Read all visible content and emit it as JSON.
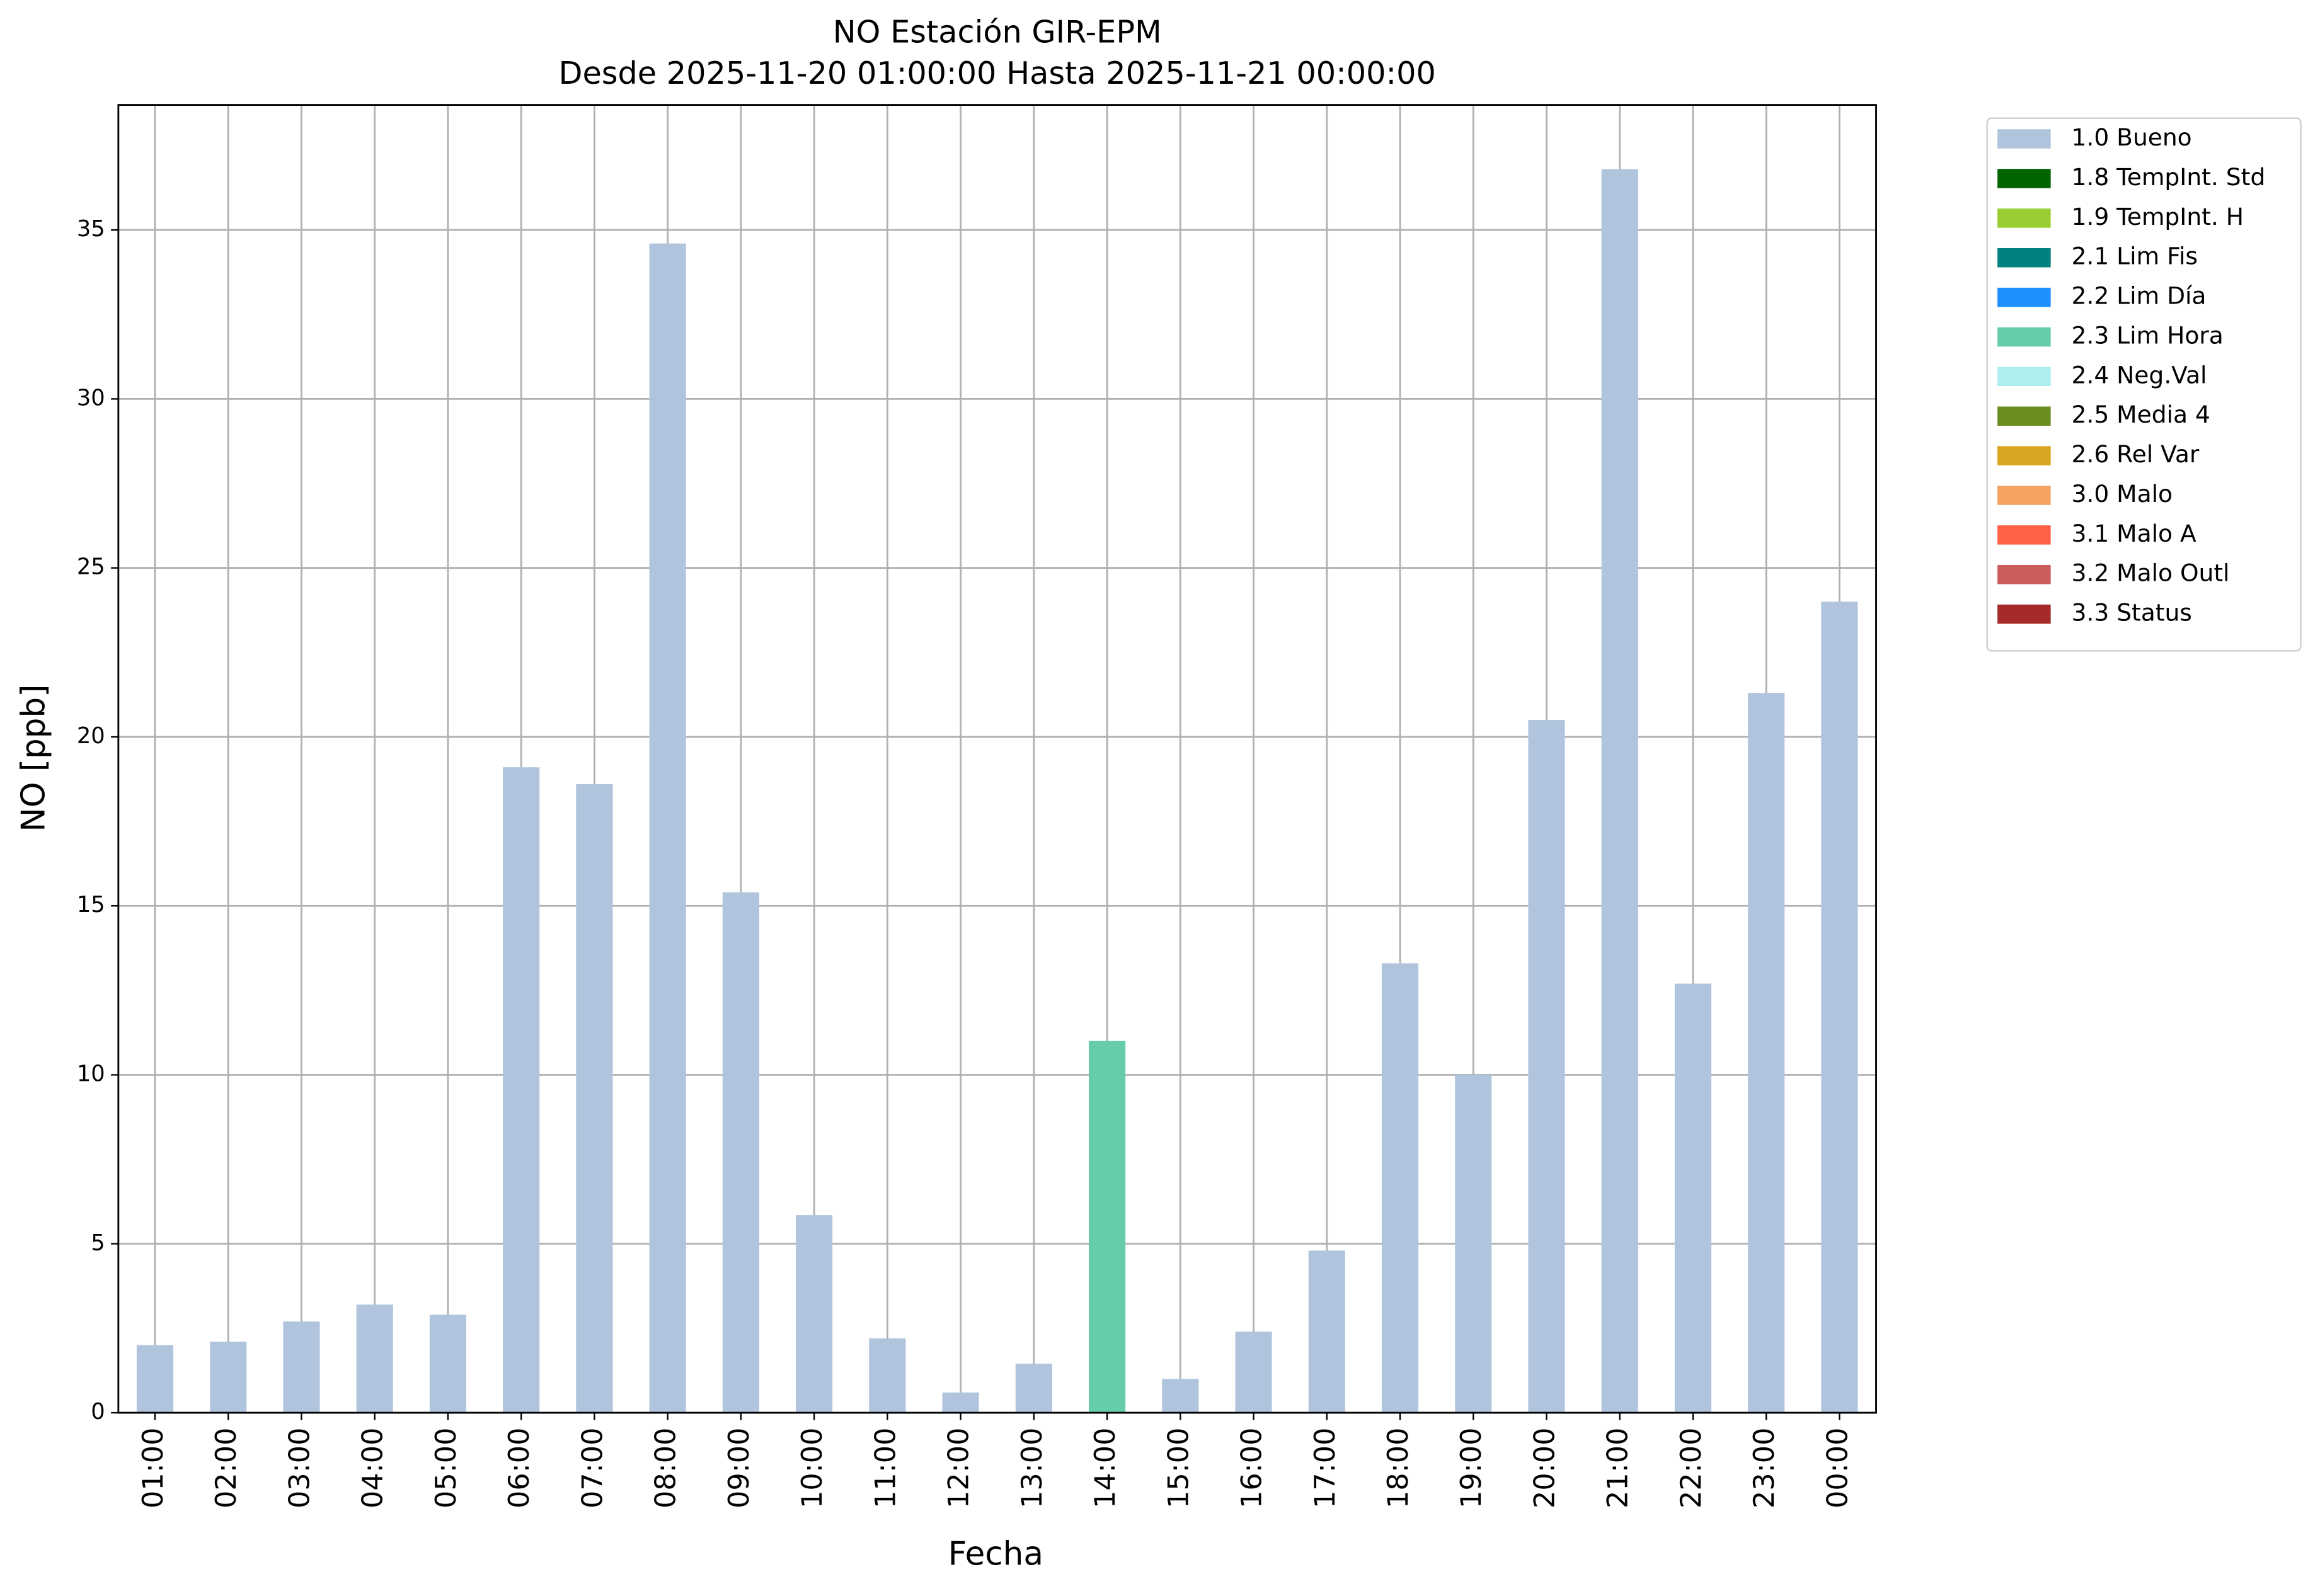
{
  "chart_data": {
    "type": "stacked-bar",
    "title": "NO Estación GIR-EPM",
    "subtitle": "Desde 2025-11-20 01:00:00 Hasta 2025-11-21 00:00:00",
    "x_label": "Fecha",
    "y_label": "NO [ppb]",
    "categories": [
      "01:00",
      "02:00",
      "03:00",
      "04:00",
      "05:00",
      "06:00",
      "07:00",
      "08:00",
      "09:00",
      "10:00",
      "11:00",
      "12:00",
      "13:00",
      "14:00",
      "15:00",
      "16:00",
      "17:00",
      "18:00",
      "19:00",
      "20:00",
      "21:00",
      "22:00",
      "23:00",
      "00:00"
    ],
    "series": [
      {
        "name": "1.0 Bueno",
        "color": "#b0c4de",
        "values": [
          2.0,
          2.1,
          2.7,
          3.2,
          2.9,
          19.1,
          18.6,
          34.6,
          15.4,
          5.85,
          2.2,
          0.6,
          1.45,
          null,
          1.0,
          2.4,
          4.8,
          13.3,
          10.0,
          20.5,
          36.8,
          12.7,
          21.3,
          24.0
        ]
      },
      {
        "name": "1.8 TempInt. Std",
        "color": "#006400",
        "values": [
          null,
          null,
          null,
          null,
          null,
          null,
          null,
          null,
          null,
          null,
          null,
          null,
          null,
          null,
          null,
          null,
          null,
          null,
          null,
          null,
          null,
          null,
          null,
          null
        ]
      },
      {
        "name": "1.9 TempInt. H",
        "color": "#9acd32",
        "values": [
          null,
          null,
          null,
          null,
          null,
          null,
          null,
          null,
          null,
          null,
          null,
          null,
          null,
          null,
          null,
          null,
          null,
          null,
          null,
          null,
          null,
          null,
          null,
          null
        ]
      },
      {
        "name": "2.1 Lim Fis",
        "color": "#008080",
        "values": [
          null,
          null,
          null,
          null,
          null,
          null,
          null,
          null,
          null,
          null,
          null,
          null,
          null,
          null,
          null,
          null,
          null,
          null,
          null,
          null,
          null,
          null,
          null,
          null
        ]
      },
      {
        "name": "2.2 Lim Día",
        "color": "#1e90ff",
        "values": [
          null,
          null,
          null,
          null,
          null,
          null,
          null,
          null,
          null,
          null,
          null,
          null,
          null,
          null,
          null,
          null,
          null,
          null,
          null,
          null,
          null,
          null,
          null,
          null
        ]
      },
      {
        "name": "2.3 Lim Hora",
        "color": "#66cdaa",
        "values": [
          null,
          null,
          null,
          null,
          null,
          null,
          null,
          null,
          null,
          null,
          null,
          null,
          null,
          11.0,
          null,
          null,
          null,
          null,
          null,
          null,
          null,
          null,
          null,
          null
        ]
      },
      {
        "name": "2.4 Neg.Val",
        "color": "#afeeee",
        "values": [
          null,
          null,
          null,
          null,
          null,
          null,
          null,
          null,
          null,
          null,
          null,
          null,
          null,
          null,
          null,
          null,
          null,
          null,
          null,
          null,
          null,
          null,
          null,
          null
        ]
      },
      {
        "name": "2.5 Media 4",
        "color": "#6b8e23",
        "values": [
          null,
          null,
          null,
          null,
          null,
          null,
          null,
          null,
          null,
          null,
          null,
          null,
          null,
          null,
          null,
          null,
          null,
          null,
          null,
          null,
          null,
          null,
          null,
          null
        ]
      },
      {
        "name": "2.6 Rel Var",
        "color": "#daa520",
        "values": [
          null,
          null,
          null,
          null,
          null,
          null,
          null,
          null,
          null,
          null,
          null,
          null,
          null,
          null,
          null,
          null,
          null,
          null,
          null,
          null,
          null,
          null,
          null,
          null
        ]
      },
      {
        "name": "3.0 Malo",
        "color": "#f4a460",
        "values": [
          null,
          null,
          null,
          null,
          null,
          null,
          null,
          null,
          null,
          null,
          null,
          null,
          null,
          null,
          null,
          null,
          null,
          null,
          null,
          null,
          null,
          null,
          null,
          null
        ]
      },
      {
        "name": "3.1 Malo A",
        "color": "#ff6347",
        "values": [
          null,
          null,
          null,
          null,
          null,
          null,
          null,
          null,
          null,
          null,
          null,
          null,
          null,
          null,
          null,
          null,
          null,
          null,
          null,
          null,
          null,
          null,
          null,
          null
        ]
      },
      {
        "name": "3.2 Malo Outl",
        "color": "#cd5c5c",
        "values": [
          null,
          null,
          null,
          null,
          null,
          null,
          null,
          null,
          null,
          null,
          null,
          null,
          null,
          null,
          null,
          null,
          null,
          null,
          null,
          null,
          null,
          null,
          null,
          null
        ]
      },
      {
        "name": "3.3 Status",
        "color": "#a52a2a",
        "values": [
          null,
          null,
          null,
          null,
          null,
          null,
          null,
          null,
          null,
          null,
          null,
          null,
          null,
          null,
          null,
          null,
          null,
          null,
          null,
          null,
          null,
          null,
          null,
          null
        ]
      }
    ],
    "ylim": [
      0,
      38.7
    ],
    "yticks": [
      0,
      5,
      10,
      15,
      20,
      25,
      30,
      35
    ],
    "grid": true,
    "legend": "outside-right"
  }
}
